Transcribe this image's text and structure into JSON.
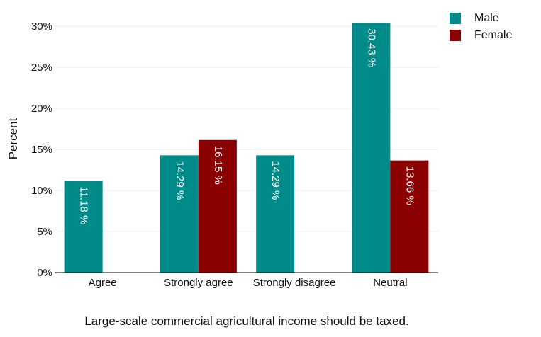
{
  "chart_data": {
    "type": "bar",
    "xlabel": "Large-scale commercial agricultural income should be taxed.",
    "ylabel": "Percent",
    "ylim": [
      0,
      32
    ],
    "yticks": [
      "0%",
      "5%",
      "10%",
      "15%",
      "20%",
      "25%",
      "30%"
    ],
    "ytick_values": [
      0,
      5,
      10,
      15,
      20,
      25,
      30
    ],
    "grid": "horizontal",
    "legend": "top-right",
    "categories": [
      "Agree",
      "Strongly agree",
      "Strongly disagree",
      "Neutral"
    ],
    "series": [
      {
        "name": "Male",
        "color": "#008b8b",
        "values": [
          11.18,
          14.29,
          14.29,
          30.43
        ],
        "labels": [
          "11.18 %",
          "14.29 %",
          "14.29 %",
          "30.43 %"
        ]
      },
      {
        "name": "Female",
        "color": "#8b0000",
        "values": [
          null,
          16.15,
          null,
          13.66
        ],
        "labels": [
          "",
          "16.15 %",
          "",
          "13.66 %"
        ]
      }
    ]
  }
}
